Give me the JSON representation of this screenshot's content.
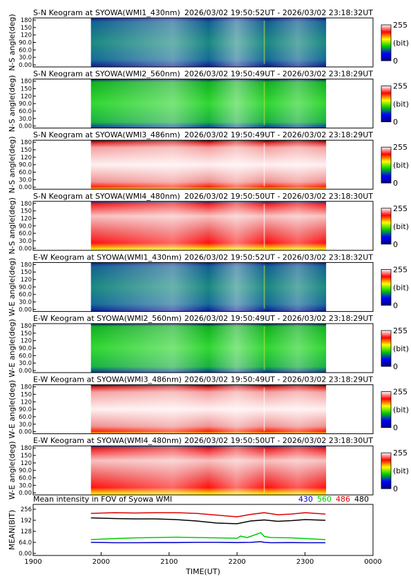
{
  "chart_data": {
    "type": "heatmap",
    "time_axis": {
      "label": "TIME(UT)",
      "ticks": [
        "1900",
        "2000",
        "2100",
        "2200",
        "2300",
        "0000"
      ]
    },
    "colorbar": {
      "max_label": "255",
      "unit_label": "(bit)",
      "min_label": "0"
    },
    "panel_y_ticks": [
      "180",
      "150",
      "120",
      "90.0",
      "60.0",
      "30.0",
      "0.00"
    ],
    "panels": [
      {
        "title": "S-N Keogram at SYOWA(WMI1_430nm)",
        "time_range": "2026/03/02 19:50:52UT - 2026/03/02 23:18:32UT",
        "ylabel": "N-S angle(deg)",
        "palette": "blue"
      },
      {
        "title": "S-N Keogram at SYOWA(WMI2_560nm)",
        "time_range": "2026/03/02 19:50:49UT - 2026/03/02 23:18:29UT",
        "ylabel": "N-S angle(deg)",
        "palette": "green"
      },
      {
        "title": "S-N Keogram at SYOWA(WMI3_486nm)",
        "time_range": "2026/03/02 19:50:49UT - 2026/03/02 23:18:29UT",
        "ylabel": "N-S angle(deg)",
        "palette": "pink"
      },
      {
        "title": "S-N Keogram at SYOWA(WMI4_480nm)",
        "time_range": "2026/03/02 19:50:50UT - 2026/03/02 23:18:30UT",
        "ylabel": "N-S angle(deg)",
        "palette": "red"
      },
      {
        "title": "E-W Keogram at SYOWA(WMI1_430nm)",
        "time_range": "2026/03/02 19:50:52UT - 2026/03/02 23:18:32UT",
        "ylabel": "W-E angle(deg)",
        "palette": "blue"
      },
      {
        "title": "E-W Keogram at SYOWA(WMI2_560nm)",
        "time_range": "2026/03/02 19:50:49UT - 2026/03/02 23:18:29UT",
        "ylabel": "W-E angle(deg)",
        "palette": "green"
      },
      {
        "title": "E-W Keogram at SYOWA(WMI3_486nm)",
        "time_range": "2026/03/02 19:50:49UT - 2026/03/02 23:18:29UT",
        "ylabel": "W-E angle(deg)",
        "palette": "pink"
      },
      {
        "title": "E-W Keogram at SYOWA(WMI4_480nm)",
        "time_range": "2026/03/02 19:50:50UT - 2026/03/02 23:18:30UT",
        "ylabel": "W-E angle(deg)",
        "palette": "red"
      }
    ],
    "mean_panel": {
      "type": "line",
      "title": "Mean intensity in FOV of Syowa WMI",
      "ylabel": "MEAN(BIT)",
      "y_ticks": [
        "256",
        "192",
        "128",
        "64.0",
        "0.00"
      ],
      "ylim": [
        0,
        256
      ],
      "series": [
        {
          "name": "430",
          "color": "#0000cc",
          "x": [
            19.85,
            20.2,
            20.5,
            20.8,
            21.1,
            21.4,
            21.7,
            22.0,
            22.2,
            22.35,
            22.4,
            22.5,
            22.8,
            23.0,
            23.3
          ],
          "y": [
            64,
            62,
            62,
            63,
            63,
            64,
            64,
            63,
            64,
            68,
            64,
            62,
            63,
            62,
            62
          ]
        },
        {
          "name": "560",
          "color": "#00cc00",
          "x": [
            19.85,
            20.2,
            20.5,
            20.8,
            21.1,
            21.4,
            21.7,
            22.0,
            22.05,
            22.15,
            22.25,
            22.35,
            22.4,
            22.5,
            22.8,
            23.0,
            23.3
          ],
          "y": [
            80,
            86,
            90,
            92,
            94,
            92,
            90,
            88,
            100,
            92,
            106,
            120,
            98,
            92,
            90,
            86,
            80
          ]
        },
        {
          "name": "486",
          "color": "#dd0000",
          "x": [
            19.85,
            20.2,
            20.5,
            20.8,
            21.1,
            21.4,
            21.7,
            22.0,
            22.2,
            22.4,
            22.6,
            22.8,
            23.0,
            23.3
          ],
          "y": [
            232,
            236,
            234,
            236,
            236,
            232,
            222,
            212,
            226,
            236,
            224,
            228,
            236,
            228
          ]
        },
        {
          "name": "480",
          "color": "#000000",
          "x": [
            19.85,
            20.2,
            20.5,
            20.8,
            21.1,
            21.4,
            21.7,
            22.0,
            22.2,
            22.4,
            22.6,
            22.8,
            23.0,
            23.3
          ],
          "y": [
            206,
            202,
            200,
            200,
            196,
            188,
            176,
            172,
            188,
            194,
            186,
            190,
            196,
            192
          ]
        }
      ]
    }
  }
}
